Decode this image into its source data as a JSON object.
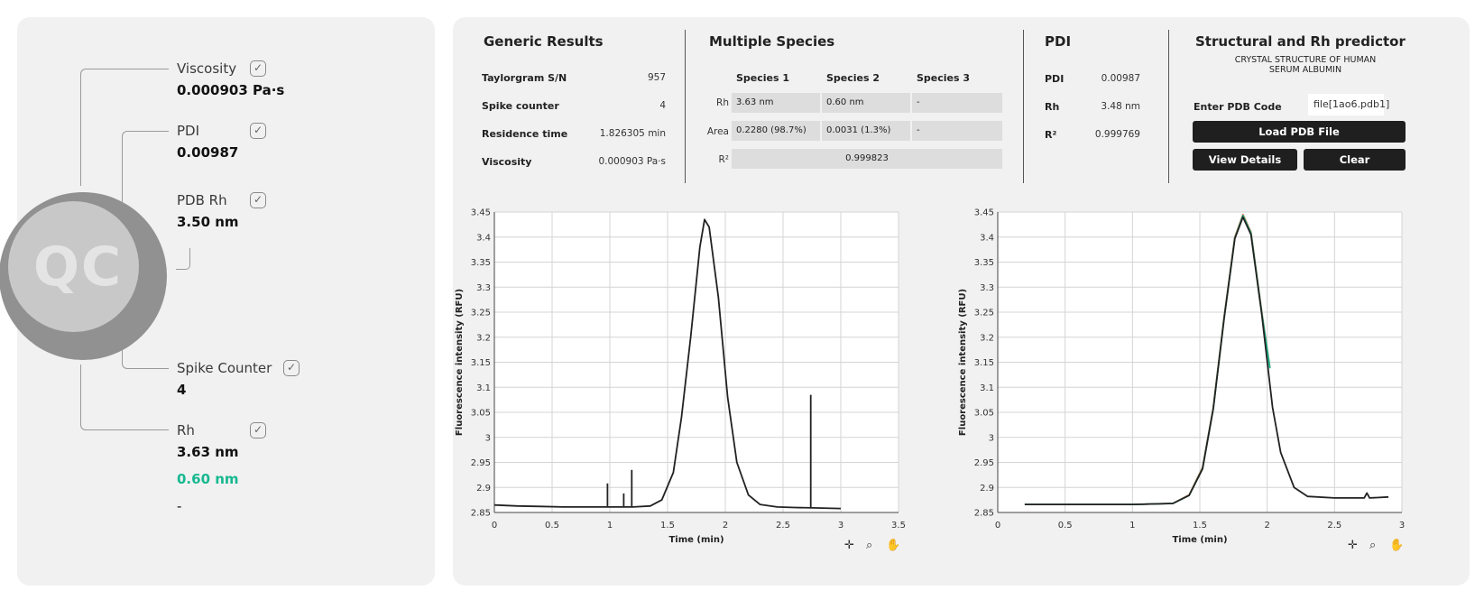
{
  "qc": {
    "badge": "QC",
    "items": [
      {
        "label": "Viscosity",
        "value": "0.000903 Pa·s"
      },
      {
        "label": "PDI",
        "value": "0.00987"
      },
      {
        "label": "PDB Rh",
        "value": "3.50 nm"
      },
      {
        "label": "Spike Counter",
        "value": "4"
      },
      {
        "label": "Rh",
        "value": "3.63 nm",
        "value2": "0.60 nm",
        "value3": "-"
      }
    ]
  },
  "generic": {
    "title": "Generic Results",
    "rows": [
      {
        "label": "Taylorgram S/N",
        "value": "957"
      },
      {
        "label": "Spike counter",
        "value": "4"
      },
      {
        "label": "Residence time",
        "value": "1.826305 min"
      },
      {
        "label": "Viscosity",
        "value": "0.000903 Pa·s"
      }
    ]
  },
  "species": {
    "title": "Multiple Species",
    "headers": [
      "Species 1",
      "Species 2",
      "Species 3"
    ],
    "row_labels": [
      "Rh",
      "Area",
      "R²"
    ],
    "rh": [
      "3.63 nm",
      "0.60 nm",
      "-"
    ],
    "area": [
      "0.2280 (98.7%)",
      "0.0031 (1.3%)",
      "-"
    ],
    "r2": "0.999823"
  },
  "pdi": {
    "title": "PDI",
    "rows": [
      {
        "label": "PDI",
        "value": "0.00987"
      },
      {
        "label": "Rh",
        "value": "3.48 nm"
      },
      {
        "label": "R²",
        "value": "0.999769"
      }
    ]
  },
  "structural": {
    "title": "Structural and Rh predictor",
    "subtitle": "CRYSTAL STRUCTURE OF HUMAN SERUM ALBUMIN",
    "pdb_label": "Enter PDB Code",
    "pdb_value": "file[1ao6.pdb1]",
    "load_button": "Load PDB File",
    "details_button": "View Details",
    "clear_button": "Clear"
  },
  "chart_data": [
    {
      "type": "line",
      "xlabel": "Time (min)",
      "ylabel": "Fluorescence intensity (RFU)",
      "xlim": [
        0,
        3.5
      ],
      "ylim": [
        2.85,
        3.45
      ],
      "xticks": [
        "0",
        "0.5",
        "1",
        "1.5",
        "2",
        "2.5",
        "3",
        "3.5"
      ],
      "yticks": [
        "3.45",
        "3.4",
        "3.35",
        "3.3",
        "3.25",
        "3.2",
        "3.15",
        "3.1",
        "3.05",
        "3",
        "2.95",
        "2.9",
        "2.85"
      ],
      "grid": true,
      "series": [
        {
          "color": "#222222",
          "x": [
            0,
            0.2,
            0.4,
            0.6,
            0.8,
            1.0,
            1.2,
            1.35,
            1.45,
            1.55,
            1.62,
            1.7,
            1.78,
            1.82,
            1.86,
            1.94,
            2.02,
            2.1,
            2.2,
            2.3,
            2.45,
            2.6,
            2.8,
            3.0
          ],
          "y": [
            2.865,
            2.863,
            2.862,
            2.861,
            2.861,
            2.861,
            2.861,
            2.863,
            2.875,
            2.93,
            3.04,
            3.2,
            3.38,
            3.435,
            3.42,
            3.28,
            3.08,
            2.95,
            2.885,
            2.866,
            2.861,
            2.86,
            2.859,
            2.858
          ]
        },
        {
          "color": "#222222",
          "x": [
            0.98,
            0.98
          ],
          "y": [
            2.862,
            2.908
          ]
        },
        {
          "color": "#222222",
          "x": [
            1.12,
            1.12
          ],
          "y": [
            2.862,
            2.888
          ]
        },
        {
          "color": "#222222",
          "x": [
            1.19,
            1.19
          ],
          "y": [
            2.862,
            2.935
          ]
        },
        {
          "color": "#222222",
          "x": [
            2.74,
            2.74
          ],
          "y": [
            2.86,
            3.085
          ]
        }
      ]
    },
    {
      "type": "line",
      "xlabel": "Time (min)",
      "ylabel": "Fluorescence intensity (RFU)",
      "xlim": [
        0,
        3
      ],
      "ylim": [
        2.85,
        3.45
      ],
      "xticks": [
        "0",
        "0.5",
        "1",
        "1.5",
        "2",
        "2.5",
        "3"
      ],
      "yticks": [
        "3.45",
        "3.4",
        "3.35",
        "3.3",
        "3.25",
        "3.2",
        "3.15",
        "3.1",
        "3.05",
        "3",
        "2.95",
        "2.9",
        "2.85"
      ],
      "grid": true,
      "series": [
        {
          "color": "#e0703a",
          "x": [
            0.2,
            0.6,
            1.0,
            1.3,
            1.42,
            1.52,
            1.6,
            1.68,
            1.76,
            1.82,
            1.88,
            1.96,
            2.02
          ],
          "y": [
            2.866,
            2.866,
            2.866,
            2.868,
            2.885,
            2.94,
            3.06,
            3.24,
            3.4,
            3.445,
            3.41,
            3.25,
            3.14
          ]
        },
        {
          "color": "#17b890",
          "x": [
            0.2,
            0.6,
            1.0,
            1.3,
            1.42,
            1.52,
            1.6,
            1.68,
            1.76,
            1.82,
            1.88,
            1.96,
            2.02
          ],
          "y": [
            2.866,
            2.866,
            2.866,
            2.868,
            2.884,
            2.938,
            3.058,
            3.238,
            3.398,
            3.443,
            3.408,
            3.248,
            3.138
          ]
        },
        {
          "color": "#222222",
          "x": [
            0.2,
            0.6,
            1.0,
            1.3,
            1.42,
            1.52,
            1.6,
            1.68,
            1.76,
            1.82,
            1.88,
            1.96,
            2.04,
            2.1,
            2.2,
            2.3,
            2.5,
            2.72,
            2.74,
            2.76,
            2.9
          ],
          "y": [
            2.866,
            2.866,
            2.866,
            2.868,
            2.884,
            2.937,
            3.057,
            3.237,
            3.397,
            3.44,
            3.405,
            3.245,
            3.06,
            2.97,
            2.9,
            2.882,
            2.879,
            2.879,
            2.889,
            2.879,
            2.881
          ]
        }
      ]
    }
  ]
}
